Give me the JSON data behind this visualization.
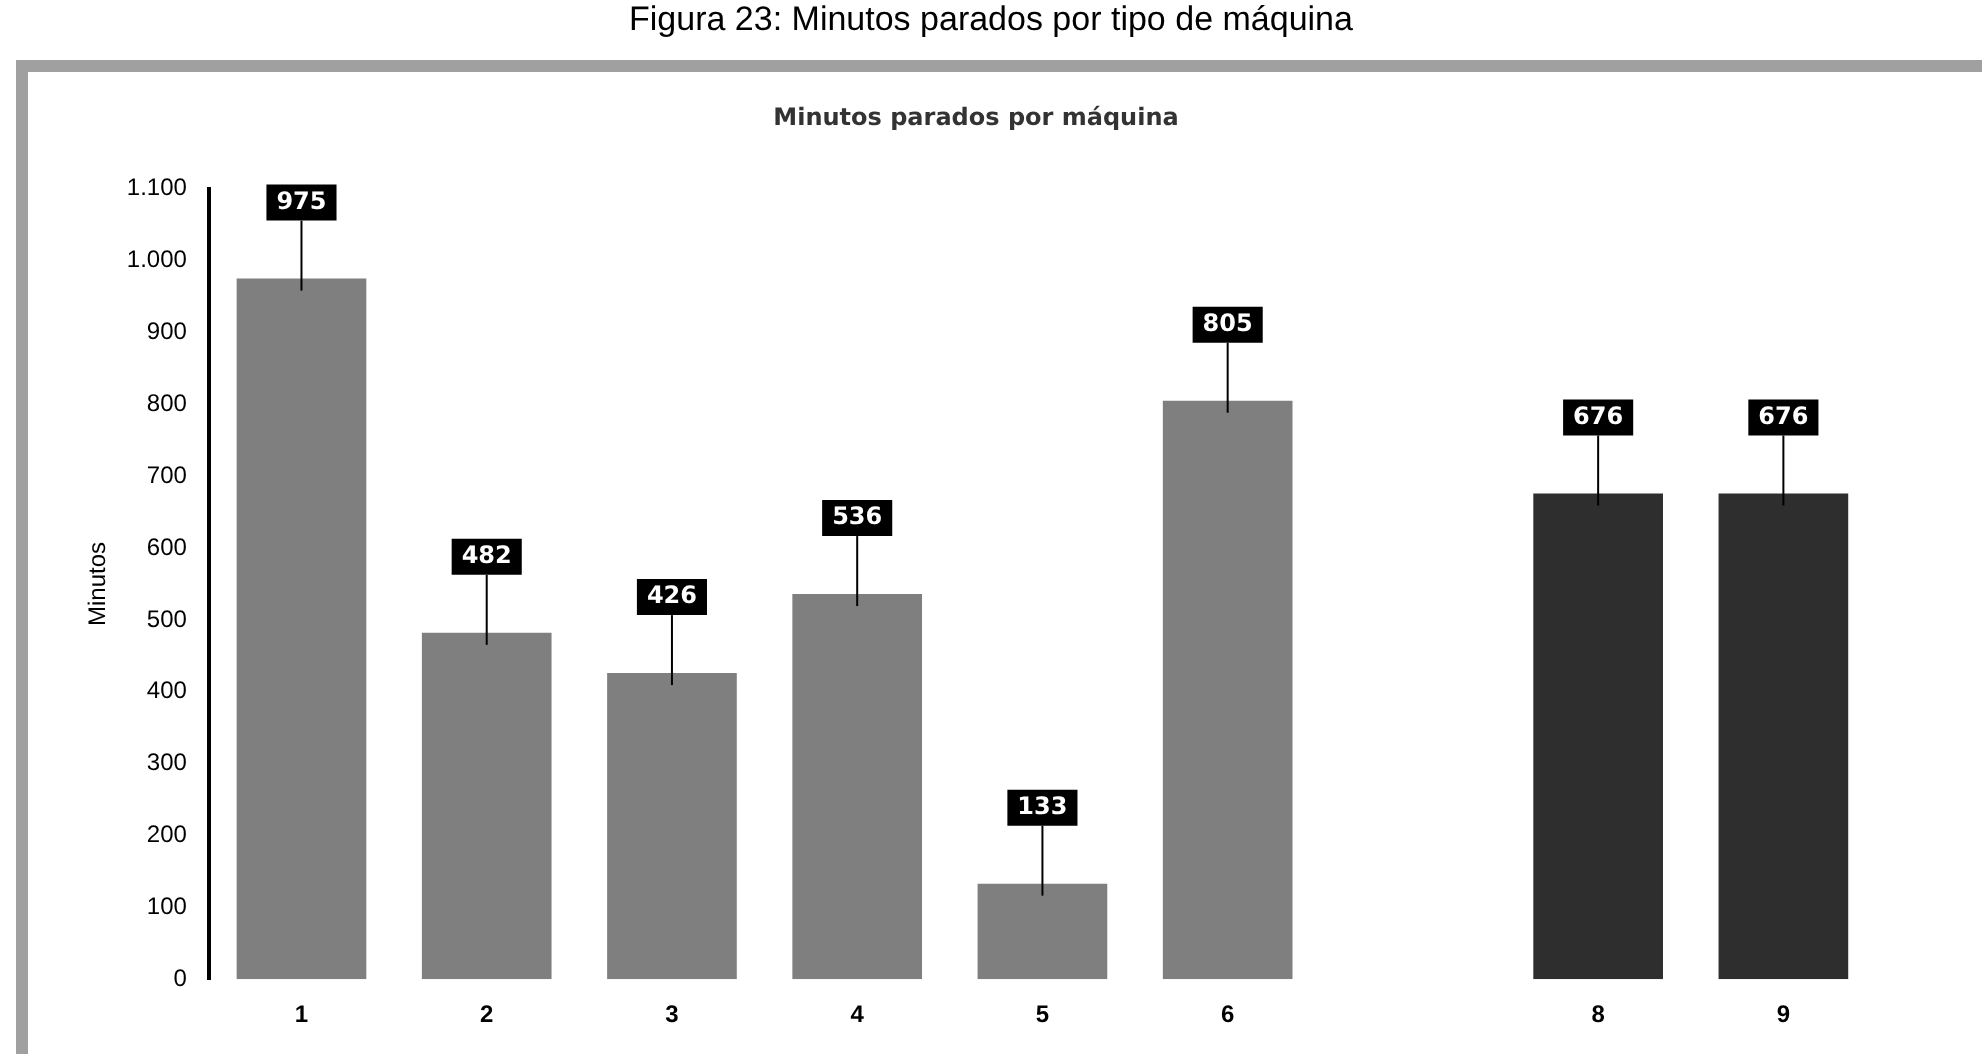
{
  "chart_data": {
    "type": "bar",
    "title": "Minutos parados por máquina",
    "ylabel": "Minutos",
    "annotations": [
      "Figura 23: Minutos parados por tipo de máquina"
    ],
    "categories": [
      "1",
      "2",
      "3",
      "4",
      "5",
      "6",
      null,
      "8",
      "9"
    ],
    "values": [
      975,
      482,
      426,
      536,
      133,
      805,
      null,
      676,
      676
    ],
    "colors": [
      "#7f7f7f",
      "#7f7f7f",
      "#7f7f7f",
      "#7f7f7f",
      "#7f7f7f",
      "#7f7f7f",
      "#7f7f7f",
      "#2e2e2e",
      "#2e2e2e"
    ],
    "ylim": [
      0,
      1100
    ],
    "yticks": [
      0,
      100,
      200,
      300,
      400,
      500,
      600,
      700,
      800,
      900,
      {
        "value": 1000,
        "label": "1.000"
      },
      {
        "value": 1100,
        "label": "1.100"
      }
    ],
    "data_labels": true,
    "grid": false,
    "legend": false
  }
}
